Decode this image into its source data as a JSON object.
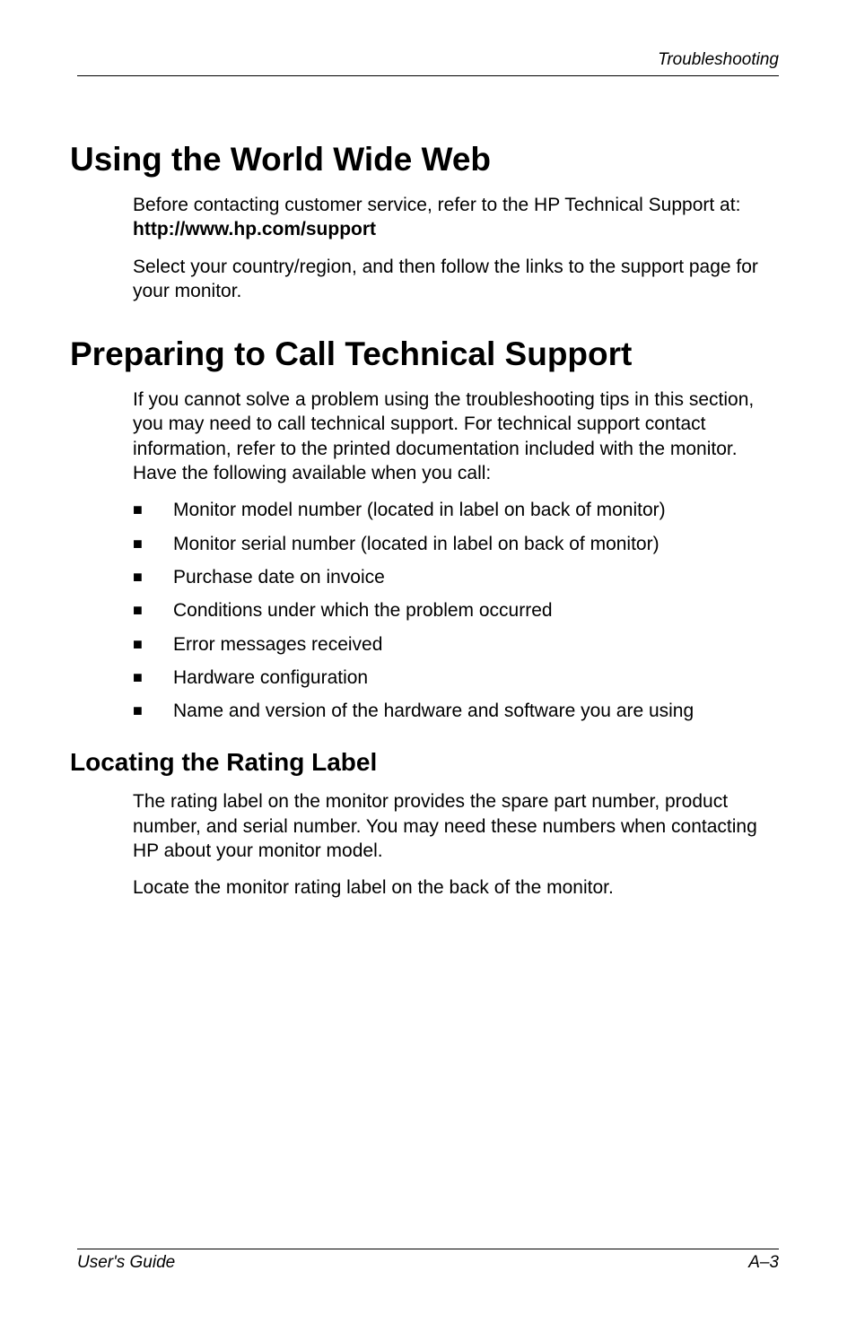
{
  "page": {
    "header_text": "Troubleshooting",
    "footer_left": "User's Guide",
    "footer_right": "A–3",
    "background_color": "#ffffff",
    "text_color": "#000000",
    "rule_color": "#000000"
  },
  "typography": {
    "h1_fontsize": 37,
    "h2_fontsize": 28,
    "body_fontsize": 21,
    "header_footer_fontsize": 19,
    "font_family": "Arial, Helvetica, sans-serif"
  },
  "sections": {
    "www": {
      "title": "Using the World Wide Web",
      "para1_a": "Before contacting customer service, refer to the HP Technical Support at: ",
      "para1_bold": "http://www.hp.com/support",
      "para2": "Select your country/region, and then follow the links to the support page for your monitor."
    },
    "tech_support": {
      "title": "Preparing to Call Technical Support",
      "intro": "If you cannot solve a problem using the troubleshooting tips in this section, you may need to call technical support. For technical support contact information, refer to the printed documentation included with the monitor. Have the following available when you call:",
      "bullets": [
        "Monitor model number (located in label on back of monitor)",
        "Monitor serial number (located in label on back of monitor)",
        "Purchase date on invoice",
        "Conditions under which the problem occurred",
        "Error messages received",
        "Hardware configuration",
        "Name and version of the hardware and software you are using"
      ]
    },
    "rating_label": {
      "title": "Locating the Rating Label",
      "para1": "The rating label on the monitor provides the spare part number, product number, and serial number. You may need these numbers when contacting HP about your monitor model.",
      "para2": "Locate the monitor rating label on the back of the monitor."
    }
  }
}
